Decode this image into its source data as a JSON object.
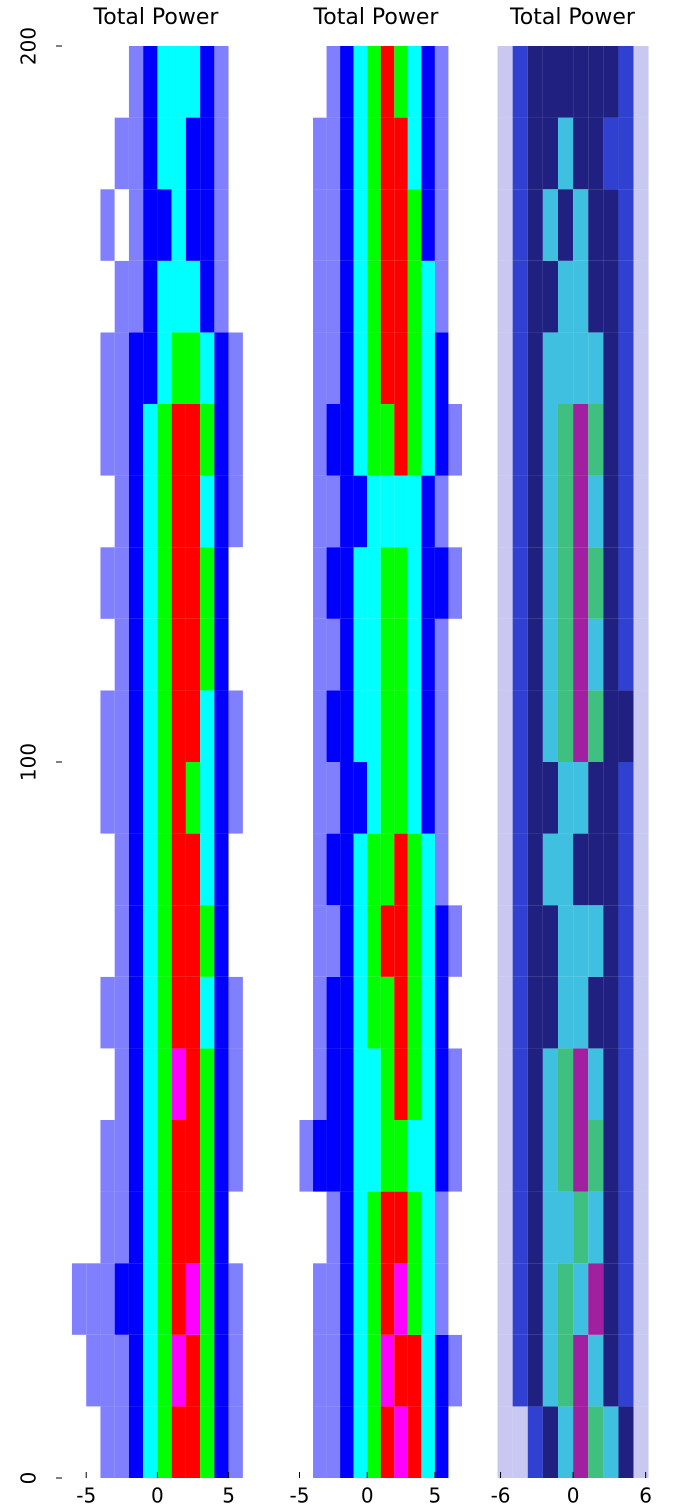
{
  "chart_data": [
    {
      "type": "heatmap",
      "title": "Total Power",
      "xlim": [
        -6.7,
        6.5
      ],
      "xticks": [
        -5,
        0,
        5
      ],
      "ylim": [
        0,
        200
      ],
      "yticks": [
        0,
        100,
        200
      ],
      "xbins": [
        -6,
        -5,
        -4,
        -3,
        -2,
        -1,
        0,
        1,
        2,
        3,
        4,
        5,
        6
      ],
      "ybins": [
        0,
        10,
        20,
        30,
        40,
        50,
        60,
        70,
        80,
        90,
        100,
        110,
        120,
        130,
        140,
        150,
        160,
        170,
        180,
        190,
        200
      ],
      "colors": [
        "#ffffff",
        "#8080ff",
        "#0000ff",
        "#00ffff",
        "#00ff00",
        "#ff0000",
        "#ff00ff"
      ],
      "values": [
        [
          0,
          0,
          1,
          1,
          2,
          3,
          4,
          5,
          5,
          4,
          2,
          1
        ],
        [
          0,
          1,
          1,
          1,
          2,
          3,
          4,
          6,
          5,
          4,
          2,
          1
        ],
        [
          1,
          1,
          1,
          2,
          2,
          3,
          4,
          5,
          6,
          4,
          2,
          1
        ],
        [
          0,
          0,
          1,
          1,
          2,
          3,
          4,
          5,
          5,
          4,
          2,
          0
        ],
        [
          0,
          0,
          1,
          1,
          2,
          3,
          4,
          5,
          5,
          4,
          2,
          1
        ],
        [
          0,
          0,
          0,
          1,
          2,
          3,
          4,
          6,
          5,
          4,
          2,
          1
        ],
        [
          0,
          0,
          1,
          1,
          2,
          3,
          4,
          5,
          5,
          3,
          2,
          1
        ],
        [
          0,
          0,
          0,
          1,
          2,
          3,
          4,
          5,
          5,
          4,
          2,
          0
        ],
        [
          0,
          0,
          0,
          1,
          2,
          3,
          4,
          5,
          5,
          3,
          2,
          0
        ],
        [
          0,
          0,
          1,
          1,
          2,
          3,
          4,
          5,
          4,
          3,
          2,
          1
        ],
        [
          0,
          0,
          1,
          1,
          2,
          3,
          4,
          5,
          5,
          3,
          2,
          1
        ],
        [
          0,
          0,
          0,
          1,
          2,
          3,
          4,
          5,
          5,
          4,
          2,
          0
        ],
        [
          0,
          0,
          1,
          1,
          2,
          3,
          4,
          5,
          5,
          4,
          2,
          0
        ],
        [
          0,
          0,
          0,
          1,
          2,
          3,
          4,
          5,
          5,
          3,
          2,
          1
        ],
        [
          0,
          0,
          1,
          1,
          2,
          3,
          4,
          5,
          5,
          4,
          2,
          1
        ],
        [
          0,
          0,
          1,
          1,
          2,
          2,
          3,
          4,
          4,
          3,
          2,
          1
        ],
        [
          0,
          0,
          0,
          1,
          1,
          2,
          3,
          3,
          3,
          2,
          1,
          0
        ],
        [
          0,
          0,
          1,
          0,
          1,
          2,
          2,
          3,
          2,
          2,
          1,
          0
        ],
        [
          0,
          0,
          0,
          1,
          1,
          2,
          3,
          3,
          2,
          2,
          1,
          0
        ],
        [
          0,
          0,
          0,
          0,
          1,
          2,
          3,
          3,
          3,
          2,
          1,
          0
        ]
      ]
    },
    {
      "type": "heatmap",
      "title": "Total Power",
      "xlim": [
        -5.7,
        7
      ],
      "xticks": [
        -5,
        0,
        5
      ],
      "ylim": [
        0,
        200
      ],
      "xbins": [
        -5,
        -4,
        -3,
        -2,
        -1,
        0,
        1,
        2,
        3,
        4,
        5,
        6,
        7
      ],
      "ybins": [
        0,
        10,
        20,
        30,
        40,
        50,
        60,
        70,
        80,
        90,
        100,
        110,
        120,
        130,
        140,
        150,
        160,
        170,
        180,
        190,
        200
      ],
      "colors": [
        "#ffffff",
        "#8080ff",
        "#0000ff",
        "#00ffff",
        "#00ff00",
        "#ff0000",
        "#ff00ff"
      ],
      "values": [
        [
          0,
          1,
          1,
          2,
          3,
          4,
          5,
          6,
          5,
          3,
          2,
          0
        ],
        [
          0,
          1,
          1,
          2,
          3,
          4,
          6,
          5,
          5,
          3,
          2,
          1
        ],
        [
          0,
          1,
          1,
          2,
          3,
          4,
          5,
          6,
          4,
          3,
          1,
          0
        ],
        [
          0,
          0,
          1,
          2,
          3,
          4,
          5,
          5,
          4,
          3,
          1,
          0
        ],
        [
          1,
          2,
          2,
          2,
          3,
          3,
          4,
          4,
          3,
          3,
          2,
          1
        ],
        [
          0,
          1,
          2,
          2,
          3,
          3,
          4,
          5,
          4,
          3,
          2,
          1
        ],
        [
          0,
          1,
          2,
          2,
          3,
          4,
          4,
          5,
          4,
          3,
          2,
          0
        ],
        [
          0,
          1,
          1,
          2,
          3,
          4,
          5,
          5,
          4,
          3,
          2,
          1
        ],
        [
          0,
          1,
          2,
          2,
          3,
          4,
          4,
          5,
          4,
          3,
          1,
          0
        ],
        [
          0,
          1,
          1,
          2,
          2,
          3,
          4,
          4,
          3,
          2,
          1,
          0
        ],
        [
          0,
          1,
          2,
          2,
          3,
          3,
          4,
          4,
          3,
          2,
          1,
          0
        ],
        [
          0,
          1,
          1,
          2,
          3,
          3,
          4,
          4,
          3,
          2,
          1,
          0
        ],
        [
          0,
          1,
          2,
          2,
          3,
          3,
          4,
          4,
          3,
          2,
          2,
          1
        ],
        [
          0,
          1,
          1,
          2,
          2,
          3,
          3,
          3,
          3,
          2,
          1,
          0
        ],
        [
          0,
          1,
          2,
          2,
          3,
          4,
          4,
          5,
          4,
          3,
          2,
          1
        ],
        [
          0,
          1,
          1,
          2,
          3,
          4,
          5,
          5,
          4,
          3,
          2,
          0
        ],
        [
          0,
          1,
          1,
          2,
          3,
          4,
          5,
          5,
          4,
          3,
          1,
          0
        ],
        [
          0,
          1,
          1,
          2,
          3,
          4,
          5,
          5,
          4,
          2,
          1,
          0
        ],
        [
          0,
          1,
          1,
          2,
          3,
          4,
          5,
          5,
          3,
          2,
          1,
          0
        ],
        [
          0,
          0,
          1,
          2,
          3,
          4,
          5,
          4,
          3,
          2,
          1,
          0
        ]
      ]
    },
    {
      "type": "heatmap",
      "title": "Total Power",
      "xlim": [
        -7.7,
        7.6
      ],
      "xticks": [
        -6,
        0,
        6
      ],
      "ylim": [
        0,
        200
      ],
      "xbins": [
        -7.5,
        -6.25,
        -5,
        -3.75,
        -2.5,
        -1.25,
        0,
        1.25,
        2.5,
        3.75,
        5,
        6.25,
        7.5
      ],
      "ybins": [
        0,
        10,
        20,
        30,
        40,
        50,
        60,
        70,
        80,
        90,
        100,
        110,
        120,
        130,
        140,
        150,
        160,
        170,
        180,
        190,
        200
      ],
      "colors": [
        "#ffffff",
        "#c8c8f0",
        "#3040d0",
        "#202080",
        "#40c0e0",
        "#40c080",
        "#a020a0"
      ],
      "values": [
        [
          0,
          1,
          1,
          2,
          3,
          4,
          6,
          5,
          4,
          3,
          1,
          0
        ],
        [
          0,
          1,
          2,
          3,
          4,
          5,
          6,
          4,
          3,
          2,
          1,
          0
        ],
        [
          0,
          1,
          2,
          3,
          4,
          5,
          4,
          6,
          3,
          2,
          1,
          0
        ],
        [
          0,
          1,
          2,
          3,
          4,
          4,
          5,
          4,
          3,
          2,
          1,
          0
        ],
        [
          0,
          1,
          2,
          3,
          4,
          5,
          6,
          5,
          3,
          2,
          1,
          0
        ],
        [
          0,
          1,
          2,
          3,
          4,
          5,
          6,
          4,
          3,
          2,
          1,
          0
        ],
        [
          0,
          1,
          2,
          3,
          3,
          4,
          4,
          3,
          3,
          2,
          1,
          0
        ],
        [
          0,
          1,
          2,
          3,
          3,
          4,
          4,
          4,
          3,
          2,
          1,
          0
        ],
        [
          0,
          1,
          2,
          3,
          4,
          4,
          3,
          3,
          3,
          2,
          1,
          0
        ],
        [
          0,
          1,
          2,
          3,
          3,
          4,
          4,
          3,
          3,
          2,
          1,
          0
        ],
        [
          0,
          1,
          2,
          3,
          4,
          5,
          6,
          5,
          3,
          3,
          1,
          0
        ],
        [
          0,
          1,
          2,
          3,
          4,
          5,
          6,
          4,
          3,
          2,
          1,
          0
        ],
        [
          0,
          1,
          2,
          3,
          4,
          5,
          6,
          5,
          3,
          2,
          1,
          0
        ],
        [
          0,
          1,
          2,
          3,
          4,
          5,
          6,
          4,
          3,
          2,
          1,
          0
        ],
        [
          0,
          1,
          2,
          3,
          4,
          5,
          6,
          5,
          3,
          2,
          1,
          0
        ],
        [
          0,
          1,
          2,
          3,
          4,
          4,
          4,
          4,
          3,
          2,
          1,
          0
        ],
        [
          0,
          1,
          2,
          3,
          3,
          4,
          4,
          3,
          3,
          2,
          1,
          0
        ],
        [
          0,
          1,
          2,
          3,
          4,
          3,
          4,
          3,
          3,
          2,
          1,
          0
        ],
        [
          0,
          1,
          2,
          3,
          3,
          4,
          3,
          3,
          2,
          2,
          1,
          0
        ],
        [
          0,
          1,
          2,
          3,
          3,
          3,
          3,
          3,
          3,
          2,
          1,
          0
        ]
      ]
    }
  ]
}
